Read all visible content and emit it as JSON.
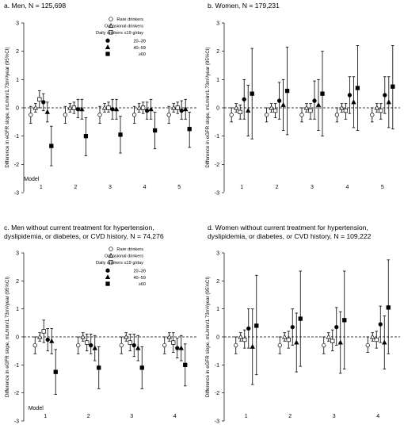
{
  "panels": [
    {
      "title_lines": [
        "a. Men, N = 125,698"
      ],
      "has_legend": true,
      "show_model_label": true
    },
    {
      "title_lines": [
        "b. Women, N = 179,231"
      ],
      "has_legend": false,
      "show_model_label": false
    },
    {
      "title_lines": [
        "c. Men without current treatment for hypertension,",
        "dyslipidemia, or diabetes, or CVD history, N = 74,276"
      ],
      "has_legend": true,
      "show_model_label": true
    },
    {
      "title_lines": [
        "d. Women without current treatment for hypertension,",
        "dyslipidemia, or diabetes, or CVD history, N = 109,222"
      ],
      "has_legend": false,
      "show_model_label": false
    }
  ],
  "legend": [
    {
      "label": "Rare drinkers",
      "marker": "circle-open"
    },
    {
      "label": "Occasional drinkers",
      "marker": "triangle-open"
    },
    {
      "label": "Daily drinkers ≤19 g/day",
      "marker": "square-open"
    },
    {
      "label": "20–39",
      "marker": "circle-filled"
    },
    {
      "label": "40–59",
      "marker": "triangle-filled"
    },
    {
      "label": "≥60",
      "marker": "square-filled"
    }
  ],
  "chart_data": [
    {
      "type": "scatter",
      "title": "a. Men, N = 125,698",
      "ylabel": "Difference in eGFR slope, mL/min/1.73m²/year (95%CI)",
      "xlabel": "Model",
      "ylim": [
        -3,
        3
      ],
      "yticks": [
        "3",
        "2",
        "1",
        "0",
        "-1",
        "-2",
        "-3"
      ],
      "categories": [
        "1",
        "2",
        "3",
        "4",
        "5"
      ],
      "reference_line": 0,
      "series": [
        {
          "name": "Rare drinkers",
          "values": [
            -0.25,
            -0.25,
            -0.25,
            -0.25,
            -0.25
          ],
          "lower": [
            -0.55,
            -0.55,
            -0.55,
            -0.55,
            -0.55
          ],
          "upper": [
            0.05,
            0.05,
            0.05,
            0.05,
            0.05
          ]
        },
        {
          "name": "Occasional drinkers",
          "values": [
            0.0,
            0.0,
            0.0,
            0.0,
            0.0
          ],
          "lower": [
            -0.15,
            -0.15,
            -0.15,
            -0.15,
            -0.15
          ],
          "upper": [
            0.15,
            0.15,
            0.15,
            0.15,
            0.15
          ]
        },
        {
          "name": "Daily drinkers ≤19 g/day",
          "values": [
            0.3,
            0.0,
            0.0,
            0.0,
            0.0
          ],
          "lower": [
            0.0,
            -0.2,
            -0.15,
            -0.2,
            -0.2
          ],
          "upper": [
            0.6,
            0.2,
            0.2,
            0.2,
            0.2
          ]
        },
        {
          "name": "20–39",
          "values": [
            0.2,
            -0.05,
            -0.05,
            -0.1,
            -0.1
          ],
          "lower": [
            -0.1,
            -0.35,
            -0.4,
            -0.4,
            -0.4
          ],
          "upper": [
            0.5,
            0.3,
            0.3,
            0.2,
            0.25
          ]
        },
        {
          "name": "40–59",
          "values": [
            -0.15,
            -0.05,
            -0.05,
            -0.05,
            -0.05
          ],
          "lower": [
            -0.5,
            -0.4,
            -0.4,
            -0.4,
            -0.4
          ],
          "upper": [
            0.2,
            0.3,
            0.3,
            0.3,
            0.3
          ]
        },
        {
          "name": "≥60",
          "values": [
            -1.35,
            -1.0,
            -0.95,
            -0.8,
            -0.75
          ],
          "lower": [
            -2.05,
            -1.7,
            -1.6,
            -1.45,
            -1.4
          ],
          "upper": [
            -0.65,
            -0.35,
            -0.3,
            -0.15,
            -0.15
          ]
        }
      ]
    },
    {
      "type": "scatter",
      "title": "b. Women, N = 179,231",
      "ylabel": "Difference in eGFR slope, mL/min/1.73m²/year (95%CI)",
      "xlabel": "",
      "ylim": [
        -3,
        3
      ],
      "yticks": [
        "3",
        "2",
        "1",
        "0",
        "-1",
        "-2",
        "-3"
      ],
      "categories": [
        "1",
        "2",
        "3",
        "4",
        "5"
      ],
      "reference_line": 0,
      "series": [
        {
          "name": "Rare drinkers",
          "values": [
            -0.25,
            -0.25,
            -0.25,
            -0.25,
            -0.25
          ],
          "lower": [
            -0.5,
            -0.5,
            -0.5,
            -0.5,
            -0.5
          ],
          "upper": [
            0.0,
            0.0,
            0.0,
            0.0,
            0.0
          ]
        },
        {
          "name": "Occasional drinkers",
          "values": [
            0.0,
            0.0,
            0.0,
            0.0,
            0.0
          ],
          "lower": [
            -0.15,
            -0.15,
            -0.15,
            -0.15,
            -0.15
          ],
          "upper": [
            0.15,
            0.15,
            0.15,
            0.15,
            0.15
          ]
        },
        {
          "name": "Daily drinkers ≤19 g/day",
          "values": [
            -0.15,
            -0.1,
            -0.1,
            -0.1,
            -0.1
          ],
          "lower": [
            -0.4,
            -0.35,
            -0.4,
            -0.4,
            -0.4
          ],
          "upper": [
            0.1,
            0.15,
            0.15,
            0.15,
            0.15
          ]
        },
        {
          "name": "20–39",
          "values": [
            0.3,
            0.25,
            0.25,
            0.45,
            0.45
          ],
          "lower": [
            -0.4,
            -0.4,
            -0.4,
            -0.2,
            -0.2
          ],
          "upper": [
            1.0,
            0.9,
            0.95,
            1.1,
            1.1
          ]
        },
        {
          "name": "40–59",
          "values": [
            -0.1,
            0.1,
            0.1,
            0.2,
            0.2
          ],
          "lower": [
            -1.0,
            -0.8,
            -0.8,
            -0.7,
            -0.7
          ],
          "upper": [
            0.8,
            1.0,
            1.0,
            1.1,
            1.1
          ]
        },
        {
          "name": "≥60",
          "values": [
            0.5,
            0.6,
            0.5,
            0.7,
            0.75
          ],
          "lower": [
            -1.1,
            -0.95,
            -1.0,
            -0.8,
            -0.75
          ],
          "upper": [
            2.1,
            2.15,
            2.0,
            2.2,
            2.2
          ]
        }
      ]
    },
    {
      "type": "scatter",
      "title": "c. Men without current treatment for hypertension, dyslipidemia, or diabetes, or CVD history, N = 74,276",
      "ylabel": "Difference in eGFR slope, mL/min/1.73m²/year (95%CI)",
      "xlabel": "Model",
      "ylim": [
        -3,
        3
      ],
      "yticks": [
        "3",
        "2",
        "1",
        "0",
        "-1",
        "-2",
        "-3"
      ],
      "categories": [
        "1",
        "2",
        "3",
        "4"
      ],
      "reference_line": 0,
      "series": [
        {
          "name": "Rare drinkers",
          "values": [
            -0.3,
            -0.3,
            -0.3,
            -0.3
          ],
          "lower": [
            -0.6,
            -0.6,
            -0.6,
            -0.6
          ],
          "upper": [
            0.0,
            0.0,
            0.0,
            0.0
          ]
        },
        {
          "name": "Occasional drinkers",
          "values": [
            0.0,
            0.0,
            0.0,
            0.0
          ],
          "lower": [
            -0.15,
            -0.15,
            -0.15,
            -0.15
          ],
          "upper": [
            0.15,
            0.15,
            0.15,
            0.15
          ]
        },
        {
          "name": "Daily drinkers ≤19 g/day",
          "values": [
            0.2,
            -0.2,
            -0.2,
            -0.2
          ],
          "lower": [
            -0.2,
            -0.5,
            -0.5,
            -0.55
          ],
          "upper": [
            0.6,
            0.1,
            0.1,
            0.15
          ]
        },
        {
          "name": "20–39",
          "values": [
            -0.1,
            -0.3,
            -0.3,
            -0.4
          ],
          "lower": [
            -0.5,
            -0.6,
            -0.7,
            -0.75
          ],
          "upper": [
            0.3,
            0.1,
            0.1,
            -0.05
          ]
        },
        {
          "name": "40–59",
          "values": [
            -0.15,
            -0.4,
            -0.4,
            -0.4
          ],
          "lower": [
            -0.6,
            -0.85,
            -0.85,
            -0.85
          ],
          "upper": [
            0.3,
            0.05,
            0.05,
            0.05
          ]
        },
        {
          "name": "≥60",
          "values": [
            -1.25,
            -1.1,
            -1.1,
            -1.0
          ],
          "lower": [
            -2.05,
            -1.85,
            -1.85,
            -1.75
          ],
          "upper": [
            -0.45,
            -0.35,
            -0.35,
            -0.25
          ]
        }
      ]
    },
    {
      "type": "scatter",
      "title": "d. Women without current treatment for hypertension, dyslipidemia, or diabetes, or CVD history, N = 109,222",
      "ylabel": "Difference in eGFR slope, mL/min/1.73m²/year (95%CI)",
      "xlabel": "",
      "ylim": [
        -3,
        3
      ],
      "yticks": [
        "3",
        "2",
        "1",
        "0",
        "-1",
        "-2",
        "-3"
      ],
      "categories": [
        "1",
        "2",
        "3",
        "4"
      ],
      "reference_line": 0,
      "series": [
        {
          "name": "Rare drinkers",
          "values": [
            -0.3,
            -0.3,
            -0.3,
            -0.3
          ],
          "lower": [
            -0.6,
            -0.6,
            -0.6,
            -0.55
          ],
          "upper": [
            0.0,
            0.0,
            0.0,
            0.0
          ]
        },
        {
          "name": "Occasional drinkers",
          "values": [
            0.0,
            0.0,
            0.0,
            0.0
          ],
          "lower": [
            -0.15,
            -0.15,
            -0.15,
            -0.15
          ],
          "upper": [
            0.15,
            0.15,
            0.15,
            0.15
          ]
        },
        {
          "name": "Daily drinkers ≤19 g/day",
          "values": [
            -0.1,
            -0.1,
            -0.15,
            -0.1
          ],
          "lower": [
            -0.4,
            -0.4,
            -0.5,
            -0.4
          ],
          "upper": [
            0.25,
            0.2,
            0.25,
            0.2
          ]
        },
        {
          "name": "20–39",
          "values": [
            0.3,
            0.35,
            0.35,
            0.45
          ],
          "lower": [
            -0.4,
            -0.3,
            -0.3,
            -0.2
          ],
          "upper": [
            1.0,
            1.0,
            1.05,
            1.1
          ]
        },
        {
          "name": "40–59",
          "values": [
            -0.35,
            -0.2,
            -0.2,
            -0.2
          ],
          "lower": [
            -1.7,
            -1.25,
            -1.3,
            -1.15
          ],
          "upper": [
            1.0,
            0.85,
            0.9,
            0.75
          ]
        },
        {
          "name": "≥60",
          "values": [
            0.4,
            0.65,
            0.6,
            1.05
          ],
          "lower": [
            -1.35,
            -1.05,
            -1.15,
            -0.6
          ],
          "upper": [
            2.2,
            2.35,
            2.35,
            2.75
          ]
        }
      ]
    }
  ]
}
